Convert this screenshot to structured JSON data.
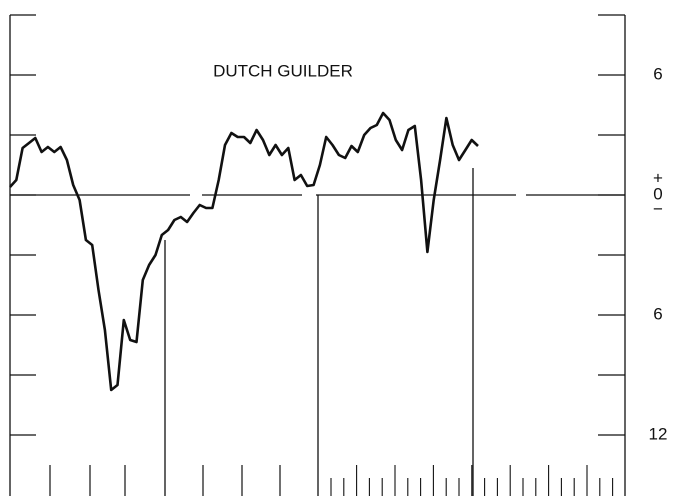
{
  "chart_data": {
    "type": "line",
    "title": "DUTCH GUILDER",
    "values": [
      0.4,
      0.75,
      2.35,
      2.6,
      2.85,
      2.15,
      2.4,
      2.15,
      2.4,
      1.75,
      0.5,
      -0.25,
      -2.25,
      -2.5,
      -4.75,
      -6.75,
      -9.75,
      -9.5,
      -6.25,
      -7.25,
      -7.35,
      -4.25,
      -3.5,
      -3,
      -2,
      -1.75,
      -1.25,
      -1.1,
      -1.35,
      -0.9,
      -0.5,
      -0.65,
      -0.65,
      0.75,
      2.5,
      3.1,
      2.9,
      2.9,
      2.6,
      3.25,
      2.75,
      2,
      2.5,
      2,
      2.35,
      0.75,
      1,
      0.45,
      0.5,
      1.5,
      2.9,
      2.5,
      2,
      1.85,
      2.45,
      2.15,
      3,
      3.35,
      3.5,
      4.1,
      3.75,
      2.75,
      2.25,
      3.25,
      3.45,
      0.75,
      -2.85,
      -0.25,
      1.75,
      3.85,
      2.5,
      1.75,
      2.25,
      2.75,
      2.45
    ],
    "color": "#111111",
    "ylim": [
      -15,
      9
    ],
    "yticks": [
      {
        "value": 6,
        "label": "6"
      },
      0,
      {
        "value": -6,
        "label": "6"
      },
      {
        "value": -12,
        "label": "12"
      }
    ],
    "minor_yticks": [
      9,
      3,
      -3,
      -9
    ],
    "zero_signs": [
      "+",
      "−"
    ]
  }
}
